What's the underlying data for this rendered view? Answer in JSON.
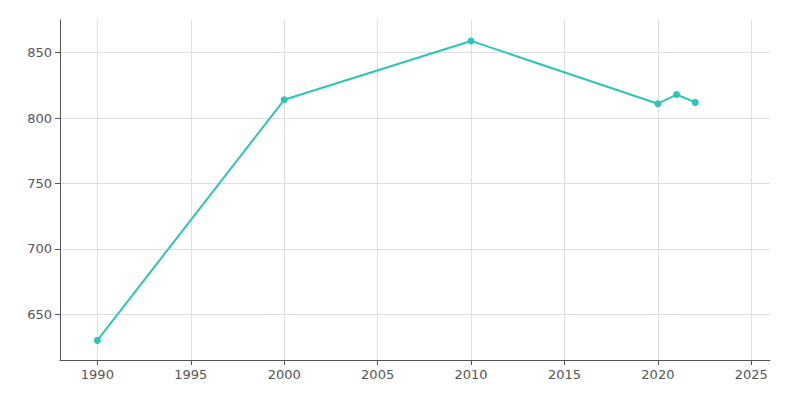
{
  "chart_data": {
    "type": "line",
    "x": [
      1990,
      2000,
      2010,
      2020,
      2021,
      2022
    ],
    "values": [
      630,
      814,
      859,
      811,
      818,
      812
    ],
    "color": "#2ec4b6",
    "marker": "circle",
    "xlim": [
      1988,
      2026
    ],
    "xticks": [
      1990,
      1995,
      2000,
      2005,
      2010,
      2015,
      2020,
      2025
    ],
    "ylim": [
      615,
      875
    ],
    "yticks": [
      650,
      700,
      750,
      800,
      850
    ],
    "grid": true
  }
}
